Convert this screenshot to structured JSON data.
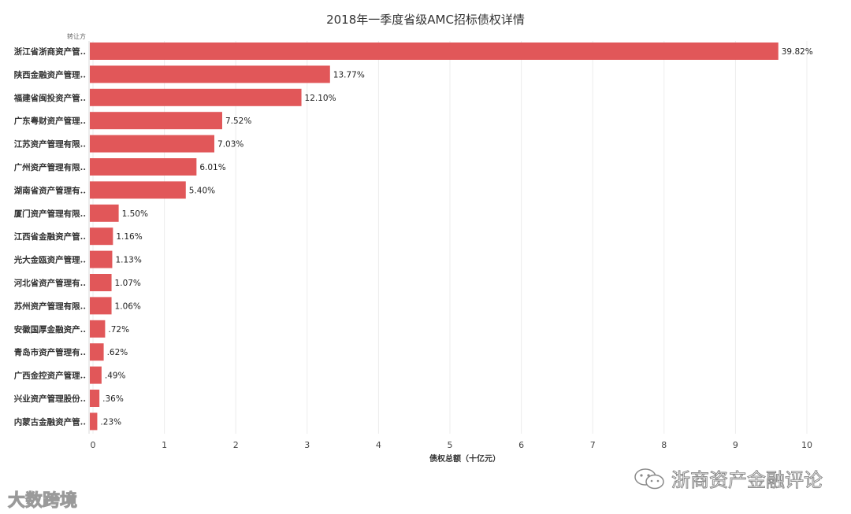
{
  "chart_data": {
    "type": "bar",
    "orientation": "horizontal",
    "title": "2018年一季度省级AMC招标债权详情",
    "category_axis_label": "转让方",
    "xlabel": "债权总额（十亿元）",
    "xlim": [
      0,
      10
    ],
    "xticks": [
      0,
      1,
      2,
      3,
      4,
      5,
      6,
      7,
      8,
      9,
      10
    ],
    "grid": true,
    "bar_color": "#e15759",
    "categories": [
      "浙江省浙商资产管..",
      "陕西金融资产管理..",
      "福建省闽投资产管..",
      "广东粤财资产管理..",
      "江苏资产管理有限..",
      "广州资产管理有限..",
      "湖南省资产管理有..",
      "厦门资产管理有限..",
      "江西省金融资产管..",
      "光大金瓯资产管理..",
      "河北省资产管理有..",
      "苏州资产管理有限..",
      "安徽国厚金融资产..",
      "青岛市资产管理有..",
      "广西金控资产管理..",
      "兴业资产管理股份..",
      "内蒙古金融资产管.."
    ],
    "values": [
      9.6,
      3.32,
      2.92,
      1.81,
      1.7,
      1.45,
      1.3,
      0.36,
      0.28,
      0.27,
      0.26,
      0.26,
      0.17,
      0.15,
      0.12,
      0.09,
      0.06
    ],
    "data_labels": [
      "39.82%",
      "13.77%",
      "12.10%",
      "7.52%",
      "7.03%",
      "6.01%",
      "5.40%",
      "1.50%",
      "1.16%",
      "1.13%",
      "1.07%",
      "1.06%",
      ".72%",
      ".62%",
      ".49%",
      ".36%",
      ".23%"
    ]
  },
  "watermarks": {
    "left_text": "大数跨境",
    "left_logo": "",
    "right_text": "浙商资产金融评论",
    "right_icon": "wechat-icon"
  }
}
